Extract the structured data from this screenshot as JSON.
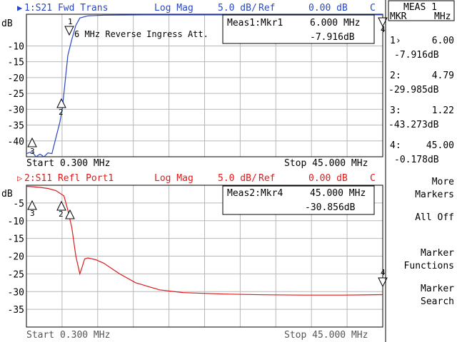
{
  "colors": {
    "trace1": "#2846c8",
    "trace2": "#e01818",
    "grid": "#b8b8b8",
    "text": "#000000"
  },
  "trace1": {
    "header": {
      "arrow": "▶",
      "label": "1:S21 Fwd Trans",
      "format": "Log Mag",
      "scale": "5.0 dB/",
      "ref_label": "Ref",
      "ref_value": "0.00 dB",
      "coupling": "C"
    },
    "y_unit": "dB",
    "y_ticks": [
      "-10",
      "-15",
      "-20",
      "-25",
      "-30",
      "-35",
      "-40"
    ],
    "active_marker_box": {
      "name": "Meas1:Mkr1",
      "freq": "6.000 MHz",
      "value": "-7.916dB"
    },
    "annotation": "6 MHz Reverse Ingress Att.",
    "start": "Start 0.300 MHz",
    "stop": "Stop 45.000 MHz",
    "marker_labels": [
      "1",
      "2",
      "3",
      "4"
    ]
  },
  "trace2": {
    "header": {
      "arrow": "▷",
      "label": "2:S11 Refl Port1",
      "format": "Log Mag",
      "scale": "5.0 dB/",
      "ref_label": "Ref",
      "ref_value": "0.00 dB",
      "coupling": "C"
    },
    "y_unit": "dB",
    "y_ticks": [
      "-5",
      "-10",
      "-15",
      "-20",
      "-25",
      "-30",
      "-35"
    ],
    "active_marker_box": {
      "name": "Meas2:Mkr4",
      "freq": "45.000 MHz",
      "value": "-30.856dB"
    },
    "start": "Start 0.300 MHz",
    "stop": "Stop 45.000 MHz",
    "marker_labels": [
      "2",
      "3",
      "4"
    ]
  },
  "softkey_panel": {
    "title_line1": "MEAS 1",
    "col_left": "MKR",
    "col_right": "MHz",
    "markers": [
      {
        "id": "1›",
        "freq": "6.00",
        "value": "-7.916dB"
      },
      {
        "id": "2:",
        "freq": "4.79",
        "value": "-29.985dB"
      },
      {
        "id": "3:",
        "freq": "1.22",
        "value": "-43.273dB"
      },
      {
        "id": "4:",
        "freq": "45.00",
        "value": "-0.178dB"
      }
    ],
    "keys": [
      {
        "line1": "More",
        "line2": "Markers"
      },
      {
        "line1": "All Off",
        "line2": ""
      },
      {
        "line1": "Marker",
        "line2": "Functions"
      },
      {
        "line1": "Marker",
        "line2": "Search"
      }
    ]
  },
  "chart_data": [
    {
      "type": "line",
      "title": "1:S21 Fwd Trans",
      "xlabel": "MHz",
      "ylabel": "dB",
      "xlim": [
        0.3,
        45.0
      ],
      "ylim": [
        -45,
        0
      ],
      "grid": true,
      "series": [
        {
          "name": "1:S21 Fwd Trans",
          "x": [
            0.3,
            1.0,
            1.5,
            2.0,
            2.5,
            3.0,
            3.5,
            4.0,
            4.5,
            4.79,
            5.0,
            5.5,
            6.0,
            6.5,
            7.0,
            8.0,
            10,
            15,
            20,
            25,
            30,
            35,
            40,
            45
          ],
          "y": [
            -44,
            -43.4,
            -45,
            -44.2,
            -45,
            -43.8,
            -44,
            -39,
            -34,
            -29.99,
            -25,
            -13,
            -7.92,
            -3.5,
            -1.2,
            -0.5,
            -0.3,
            -0.2,
            -0.2,
            -0.2,
            -0.2,
            -0.2,
            -0.2,
            -0.18
          ]
        }
      ]
    },
    {
      "type": "line",
      "title": "2:S11 Refl Port1",
      "xlabel": "MHz",
      "ylabel": "dB",
      "xlim": [
        0.3,
        45.0
      ],
      "ylim": [
        -40,
        0
      ],
      "grid": true,
      "series": [
        {
          "name": "2:S11 Refl Port1",
          "x": [
            0.3,
            1.0,
            2.0,
            3.0,
            4.0,
            5.0,
            5.5,
            6.0,
            6.5,
            7.0,
            7.3,
            7.6,
            8.0,
            9.0,
            10,
            12,
            14,
            17,
            20,
            25,
            30,
            35,
            40,
            45
          ],
          "y": [
            -0.3,
            -0.4,
            -0.6,
            -0.9,
            -1.5,
            -3.0,
            -7,
            -12,
            -20,
            -25,
            -23,
            -20.8,
            -20.5,
            -21,
            -22,
            -25,
            -27.5,
            -29.5,
            -30.3,
            -30.7,
            -30.9,
            -31.0,
            -31.0,
            -30.86
          ]
        }
      ]
    }
  ]
}
